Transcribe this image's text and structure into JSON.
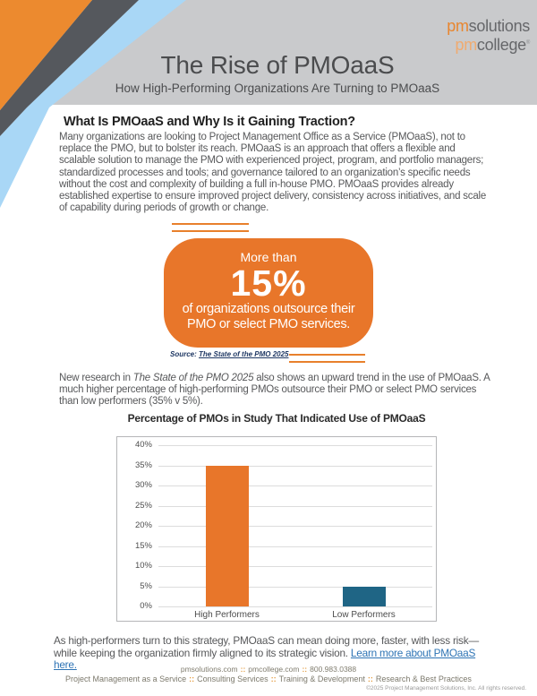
{
  "header": {
    "logo": {
      "line1_prefix": "pm",
      "line1_rest": "solutions",
      "line2_prefix": "pm",
      "line2_rest": "college",
      "reg": "®"
    },
    "title": "The Rise of PMOaaS",
    "subtitle": "How High-Performing Organizations Are Turning to PMOaaS",
    "band_color": "#c9cacc",
    "stripe_colors": {
      "orange": "#ec8a2f",
      "dark_gray": "#55585d",
      "light_blue": "#a9d7f6"
    }
  },
  "intro": {
    "heading": "What Is PMOaaS and Why Is it Gaining Traction?",
    "body": "Many organizations are looking to Project Management Office as a Service (PMOaaS), not to replace the PMO, but to bolster its reach. PMOaaS is an approach that offers a flexible and scalable solution to manage the PMO with experienced project, program, and portfolio managers; standardized processes and tools; and governance tailored to an organization’s specific needs without the cost and complexity of building a full in-house PMO. PMOaaS provides already established expertise to ensure improved project delivery, consistency across initiatives, and scale of capability during periods of growth or change."
  },
  "callout": {
    "line1": "More than",
    "stat": "15%",
    "desc": "of organizations outsource their PMO or select PMO services.",
    "bg_color": "#e8762a",
    "source_label": "Source:",
    "source_link": "The State of the PMO 2025"
  },
  "research": {
    "before_italic": "New research in ",
    "italic": "The State of the PMO 2025",
    "after_italic": " also shows an upward trend in the use of PMOaaS. A much higher percentage of high-performing PMOs outsource their PMO or select PMO services than low performers (35% v 5%)."
  },
  "chart_data": {
    "type": "bar",
    "title": "Percentage of PMOs in Study That Indicated Use of PMOaaS",
    "categories": [
      "High Performers",
      "Low Performers"
    ],
    "values": [
      35,
      5
    ],
    "bar_colors": [
      "#e8762a",
      "#1f6585"
    ],
    "ylim": [
      0,
      40
    ],
    "ytick_step": 5,
    "ytick_suffix": "%",
    "grid": true,
    "legend": "none",
    "xlabel": "",
    "ylabel": ""
  },
  "closing": {
    "text": "As high-performers turn to this strategy, PMOaaS can mean doing more, faster, with less risk—while keeping the organization firmly aligned to its strategic vision. ",
    "link": "Learn more about PMOaaS here."
  },
  "footer": {
    "separator": "::",
    "line1": [
      "pmsolutions.com",
      "pmcollege.com",
      "800.983.0388"
    ],
    "line2": [
      "Project Management as a Service",
      "Consulting Services",
      "Training & Development",
      "Research & Best Practices"
    ],
    "copyright": "©2025 Project Management Solutions, Inc. All rights reserved."
  }
}
